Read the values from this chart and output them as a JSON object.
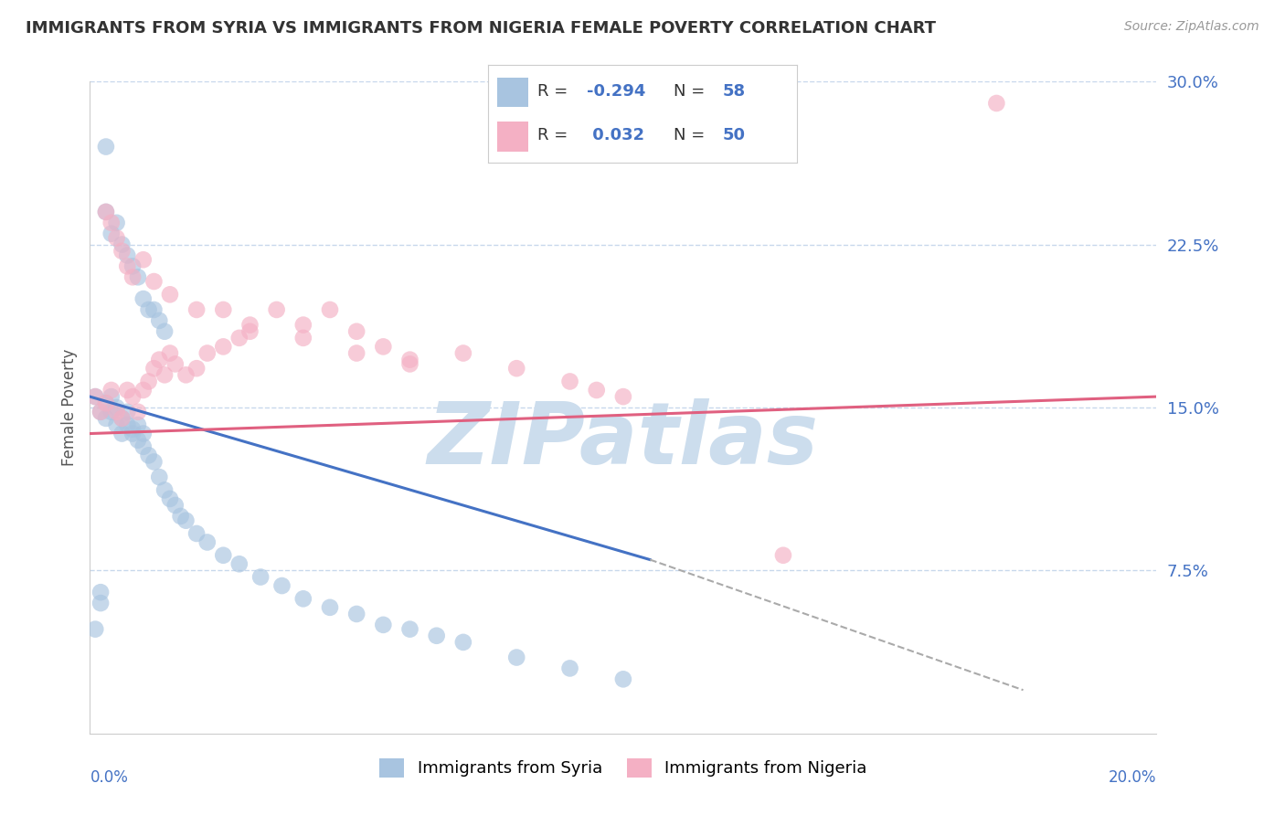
{
  "title": "IMMIGRANTS FROM SYRIA VS IMMIGRANTS FROM NIGERIA FEMALE POVERTY CORRELATION CHART",
  "source": "Source: ZipAtlas.com",
  "ylabel": "Female Poverty",
  "y_ticks": [
    0.0,
    0.075,
    0.15,
    0.225,
    0.3
  ],
  "y_tick_labels": [
    "",
    "7.5%",
    "15.0%",
    "22.5%",
    "30.0%"
  ],
  "xlim": [
    0.0,
    0.2
  ],
  "ylim": [
    0.0,
    0.3
  ],
  "syria_R": -0.294,
  "syria_N": 58,
  "nigeria_R": 0.032,
  "nigeria_N": 50,
  "syria_color": "#a8c4e0",
  "nigeria_color": "#f4b0c4",
  "syria_line_color": "#4472c4",
  "nigeria_line_color": "#e06080",
  "watermark": "ZIPatlas",
  "watermark_color": "#ccdded",
  "legend_syria_label": "Immigrants from Syria",
  "legend_nigeria_label": "Immigrants from Nigeria",
  "background_color": "#ffffff",
  "grid_color": "#c8d8ec",
  "syria_line_x0": 0.0,
  "syria_line_y0": 0.155,
  "syria_line_x1": 0.105,
  "syria_line_y1": 0.08,
  "syria_line_solid_end": 0.105,
  "syria_line_dash_end_x": 0.175,
  "syria_line_dash_end_y": 0.02,
  "nigeria_line_x0": 0.0,
  "nigeria_line_y0": 0.138,
  "nigeria_line_x1": 0.2,
  "nigeria_line_y1": 0.155,
  "syria_scatter_x": [
    0.001,
    0.002,
    0.003,
    0.003,
    0.004,
    0.004,
    0.005,
    0.005,
    0.006,
    0.006,
    0.007,
    0.007,
    0.008,
    0.008,
    0.009,
    0.009,
    0.01,
    0.01,
    0.011,
    0.012,
    0.013,
    0.014,
    0.015,
    0.016,
    0.017,
    0.018,
    0.02,
    0.022,
    0.025,
    0.028,
    0.032,
    0.036,
    0.04,
    0.045,
    0.05,
    0.055,
    0.06,
    0.065,
    0.07,
    0.08,
    0.09,
    0.1,
    0.003,
    0.003,
    0.004,
    0.005,
    0.006,
    0.007,
    0.008,
    0.009,
    0.01,
    0.011,
    0.012,
    0.013,
    0.014,
    0.002,
    0.002,
    0.001
  ],
  "syria_scatter_y": [
    0.155,
    0.148,
    0.152,
    0.145,
    0.148,
    0.155,
    0.15,
    0.142,
    0.138,
    0.145,
    0.142,
    0.148,
    0.14,
    0.138,
    0.135,
    0.142,
    0.132,
    0.138,
    0.128,
    0.125,
    0.118,
    0.112,
    0.108,
    0.105,
    0.1,
    0.098,
    0.092,
    0.088,
    0.082,
    0.078,
    0.072,
    0.068,
    0.062,
    0.058,
    0.055,
    0.05,
    0.048,
    0.045,
    0.042,
    0.035,
    0.03,
    0.025,
    0.27,
    0.24,
    0.23,
    0.235,
    0.225,
    0.22,
    0.215,
    0.21,
    0.2,
    0.195,
    0.195,
    0.19,
    0.185,
    0.06,
    0.065,
    0.048
  ],
  "nigeria_scatter_x": [
    0.001,
    0.002,
    0.003,
    0.004,
    0.005,
    0.006,
    0.007,
    0.008,
    0.009,
    0.01,
    0.011,
    0.012,
    0.013,
    0.014,
    0.015,
    0.016,
    0.018,
    0.02,
    0.022,
    0.025,
    0.028,
    0.03,
    0.035,
    0.04,
    0.045,
    0.05,
    0.055,
    0.06,
    0.07,
    0.08,
    0.09,
    0.095,
    0.1,
    0.13,
    0.003,
    0.004,
    0.005,
    0.006,
    0.007,
    0.008,
    0.01,
    0.012,
    0.015,
    0.02,
    0.025,
    0.03,
    0.04,
    0.05,
    0.06,
    0.17
  ],
  "nigeria_scatter_y": [
    0.155,
    0.148,
    0.152,
    0.158,
    0.148,
    0.145,
    0.158,
    0.155,
    0.148,
    0.158,
    0.162,
    0.168,
    0.172,
    0.165,
    0.175,
    0.17,
    0.165,
    0.168,
    0.175,
    0.178,
    0.182,
    0.185,
    0.195,
    0.188,
    0.195,
    0.185,
    0.178,
    0.172,
    0.175,
    0.168,
    0.162,
    0.158,
    0.155,
    0.082,
    0.24,
    0.235,
    0.228,
    0.222,
    0.215,
    0.21,
    0.218,
    0.208,
    0.202,
    0.195,
    0.195,
    0.188,
    0.182,
    0.175,
    0.17,
    0.29
  ]
}
